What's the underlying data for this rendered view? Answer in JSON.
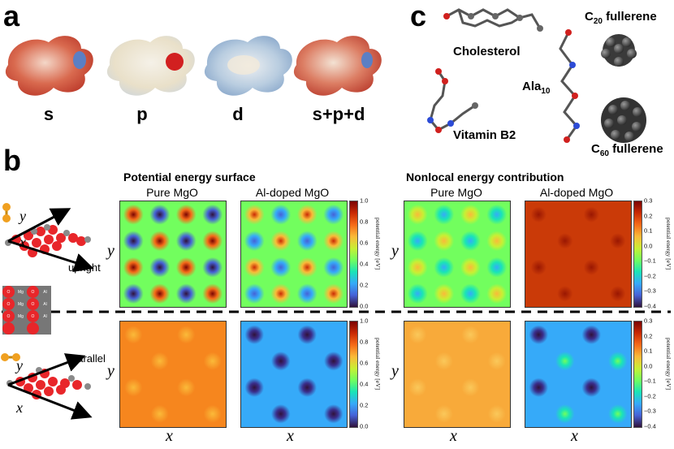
{
  "panel_a": {
    "letter": "a",
    "labels": [
      "s",
      "p",
      "d",
      "s+p+d"
    ]
  },
  "panel_b": {
    "letter": "b",
    "pes_title": "Potential energy surface",
    "nonlocal_title": "Nonlocal energy contribution",
    "col_titles": [
      "Pure MgO",
      "Al-doped MgO",
      "Pure MgO",
      "Al-doped MgO"
    ],
    "axis_x": "x",
    "axis_y": "y",
    "upright_label": "upright",
    "parallel_label": "parallel",
    "substrate_atoms": [
      "O",
      "Mg",
      "O",
      "Al",
      "O",
      "Mg",
      "O",
      "Al",
      "O",
      "Mg",
      "O",
      "Al"
    ],
    "pes_colorbar": {
      "label": "potential energy [eV]",
      "ticks": [
        "1.0",
        "0.8",
        "0.6",
        "0.4",
        "0.2",
        "0.0"
      ]
    },
    "nonlocal_colorbar": {
      "label": "potential energy [eV]",
      "ticks": [
        "0.3",
        "0.2",
        "0.1",
        "0.0",
        "−0.1",
        "−0.2",
        "−0.3",
        "−0.4"
      ]
    }
  },
  "panel_c": {
    "letter": "c",
    "cholesterol": "Cholesterol",
    "c20_base": "C",
    "c20_sub": "20",
    "c20_rest": " fullerene",
    "ala_base": "Ala",
    "ala_sub": "10",
    "vitamin": "Vitamin B2",
    "c60_base": "C",
    "c60_sub": "60",
    "c60_rest": " fullerene"
  },
  "colors": {
    "oxygen": "#e8262a",
    "magnesium": "#8a8a8a",
    "carbon": "#3b3b3b",
    "adsorbate": "#f0a020"
  }
}
